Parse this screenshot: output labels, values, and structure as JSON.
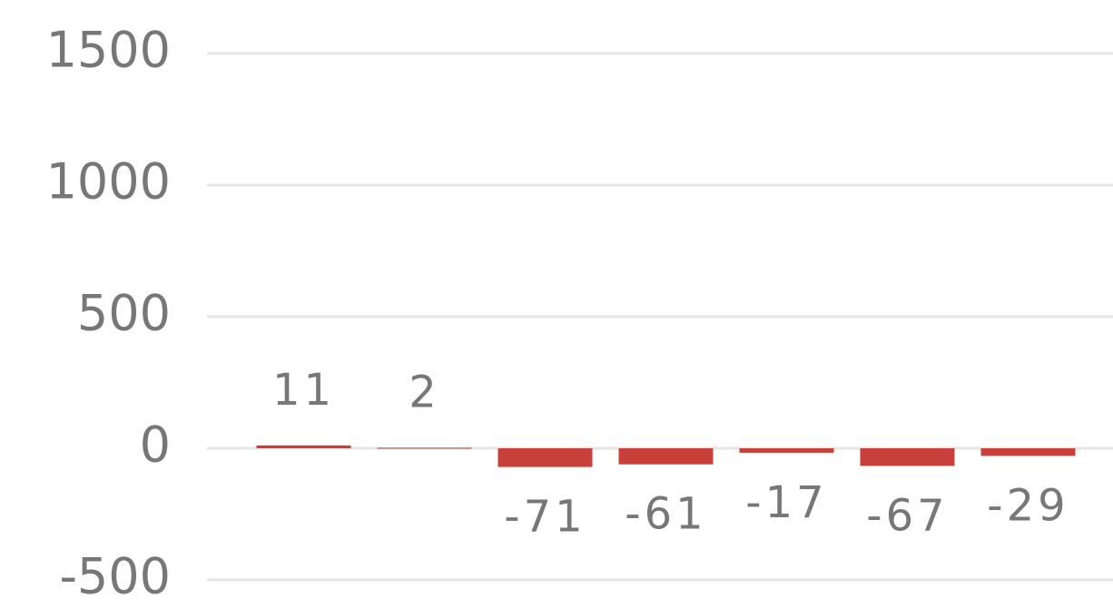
{
  "chart_data": {
    "type": "bar",
    "categories": [
      null,
      null,
      null,
      null,
      null,
      null,
      null
    ],
    "values": [
      11,
      2,
      -71,
      -61,
      -17,
      -67,
      -29
    ],
    "color": "#c9403a",
    "ylim": [
      -500,
      1500
    ],
    "yticks": [
      -500,
      0,
      500,
      1000,
      1500
    ],
    "grid": true
  }
}
